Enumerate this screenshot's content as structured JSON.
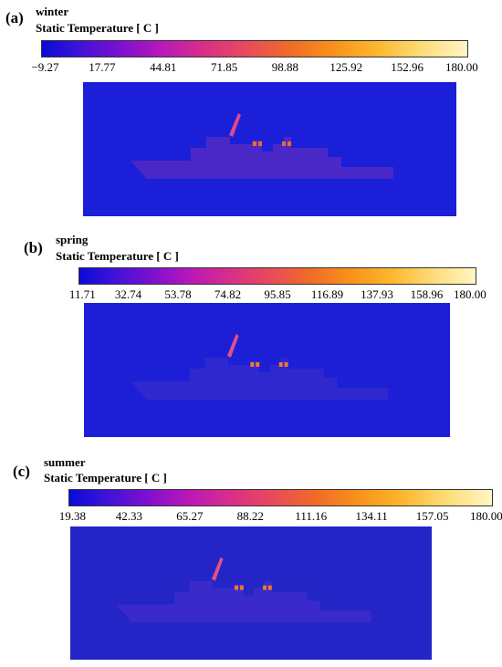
{
  "panels": [
    {
      "label": "(a)",
      "season": "winter",
      "quantity": "Static Temperature [ C ]",
      "ticks": [
        "−9.27",
        "17.77",
        "44.81",
        "71.85",
        "98.88",
        "125.92",
        "152.96",
        "180.00"
      ],
      "colors": {
        "background": "#1b1fd8",
        "ship": "#4a28c8",
        "hotspot": "#f06a2a",
        "stack": "#e24a8a"
      }
    },
    {
      "label": "(b)",
      "season": "spring",
      "quantity": "Static Temperature [ C ]",
      "ticks": [
        "11.71",
        "32.74",
        "53.78",
        "74.82",
        "95.85",
        "116.89",
        "137.93",
        "158.96",
        "180.00"
      ],
      "colors": {
        "background": "#1c1fd6",
        "ship": "#2f28cf",
        "hotspot": "#f07a2a",
        "stack": "#e2508a"
      }
    },
    {
      "label": "(c)",
      "season": "summer",
      "quantity": "Static Temperature [ C ]",
      "ticks": [
        "19.38",
        "42.33",
        "65.27",
        "88.22",
        "111.16",
        "134.11",
        "157.05",
        "180.00"
      ],
      "colors": {
        "background": "#2325c6",
        "ship": "#3a2acb",
        "hotspot": "#f07a2a",
        "stack": "#e2508a"
      }
    }
  ]
}
